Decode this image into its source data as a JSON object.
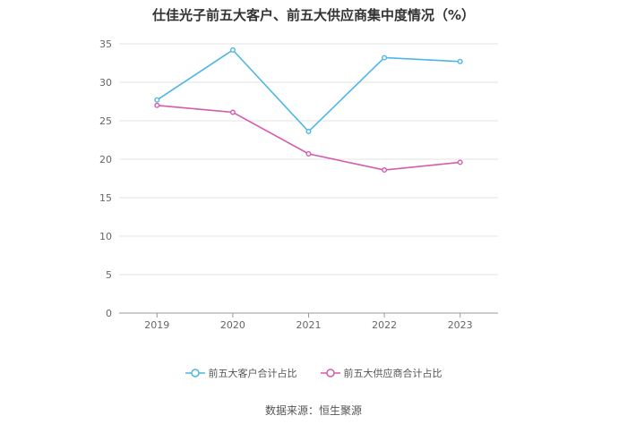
{
  "title": "仕佳光子前五大客户、前五大供应商集中度情况（%）",
  "source": "数据来源：恒生聚源",
  "chart_data": {
    "type": "line",
    "title": "仕佳光子前五大客户、前五大供应商集中度情况（%）",
    "x": [
      "2019",
      "2020",
      "2021",
      "2022",
      "2023"
    ],
    "ylim": [
      0,
      35
    ],
    "yticks": [
      0,
      5,
      10,
      15,
      20,
      25,
      30,
      35
    ],
    "grid": true,
    "legend": "bottom",
    "series": [
      {
        "name": "前五大客户合计占比",
        "color": "#4db6e6",
        "values": [
          27.7,
          34.2,
          23.6,
          33.2,
          32.7
        ]
      },
      {
        "name": "前五大供应商合计占比",
        "color": "#d65bab",
        "values": [
          27.0,
          26.1,
          20.7,
          18.6,
          19.6
        ]
      }
    ]
  }
}
